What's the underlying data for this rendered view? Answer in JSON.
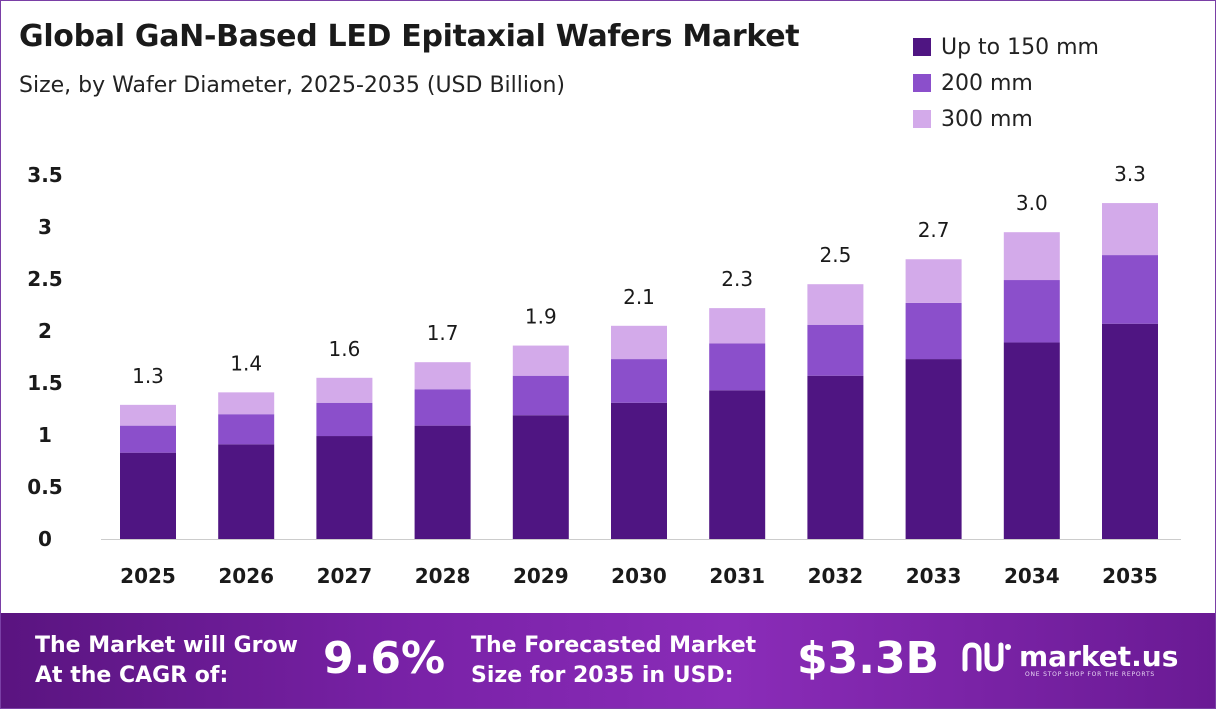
{
  "header": {
    "title": "Global GaN-Based LED Epitaxial Wafers Market",
    "subtitle": "Size, by Wafer Diameter, 2025-2035 (USD Billion)"
  },
  "colors": {
    "series": [
      "#4f1582",
      "#8b4fcb",
      "#d3aaea"
    ],
    "banner": "#7a22a8"
  },
  "chart_data": {
    "type": "bar",
    "stacked": true,
    "categories": [
      "2025",
      "2026",
      "2027",
      "2028",
      "2029",
      "2030",
      "2031",
      "2032",
      "2033",
      "2034",
      "2035"
    ],
    "series": [
      {
        "name": "Up to 150 mm",
        "values": [
          0.83,
          0.91,
          0.99,
          1.09,
          1.19,
          1.31,
          1.43,
          1.57,
          1.73,
          1.89,
          2.07
        ]
      },
      {
        "name": "200 mm",
        "values": [
          0.26,
          0.29,
          0.32,
          0.35,
          0.38,
          0.42,
          0.45,
          0.49,
          0.54,
          0.6,
          0.66
        ]
      },
      {
        "name": "300 mm",
        "values": [
          0.2,
          0.21,
          0.24,
          0.26,
          0.29,
          0.32,
          0.34,
          0.39,
          0.42,
          0.46,
          0.5
        ]
      }
    ],
    "totals_labels": [
      "1.3",
      "1.4",
      "1.6",
      "1.7",
      "1.9",
      "2.1",
      "2.3",
      "2.5",
      "2.7",
      "3.0",
      "3.3"
    ],
    "yticks": [
      "0",
      "0.5",
      "1",
      "1.5",
      "2",
      "2.5",
      "3",
      "3.5"
    ],
    "ylim": [
      0,
      3.5
    ],
    "legend_position": "top-right",
    "grid": false
  },
  "banner": {
    "cagr_line1": "The Market will Grow",
    "cagr_line2": "At the CAGR of:",
    "cagr_value": "9.6%",
    "forecast_line1": "The Forecasted Market",
    "forecast_line2": "Size for 2035 in USD:",
    "forecast_value": "$3.3B",
    "logo_text": "market.us",
    "logo_tagline": "ONE STOP SHOP FOR THE REPORTS"
  }
}
